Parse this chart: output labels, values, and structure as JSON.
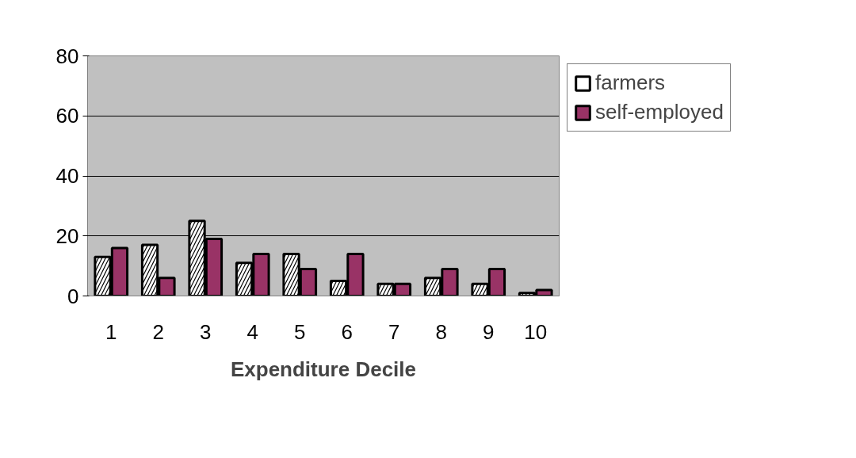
{
  "chart_data": {
    "type": "bar",
    "xlabel": "Expenditure Decile",
    "categories": [
      "1",
      "2",
      "3",
      "4",
      "5",
      "6",
      "7",
      "8",
      "9",
      "10"
    ],
    "series": [
      {
        "name": "farmers",
        "color": "#ffffff",
        "values": [
          13,
          17,
          25,
          11,
          14,
          5,
          4,
          6,
          4,
          1
        ]
      },
      {
        "name": "self-employed",
        "color": "#993366",
        "values": [
          16,
          6,
          19,
          14,
          9,
          14,
          4,
          9,
          9,
          2
        ]
      }
    ],
    "ylim": [
      0,
      80
    ],
    "yticks": [
      0,
      20,
      40,
      60,
      80
    ],
    "grid": "y",
    "legend": "right"
  }
}
